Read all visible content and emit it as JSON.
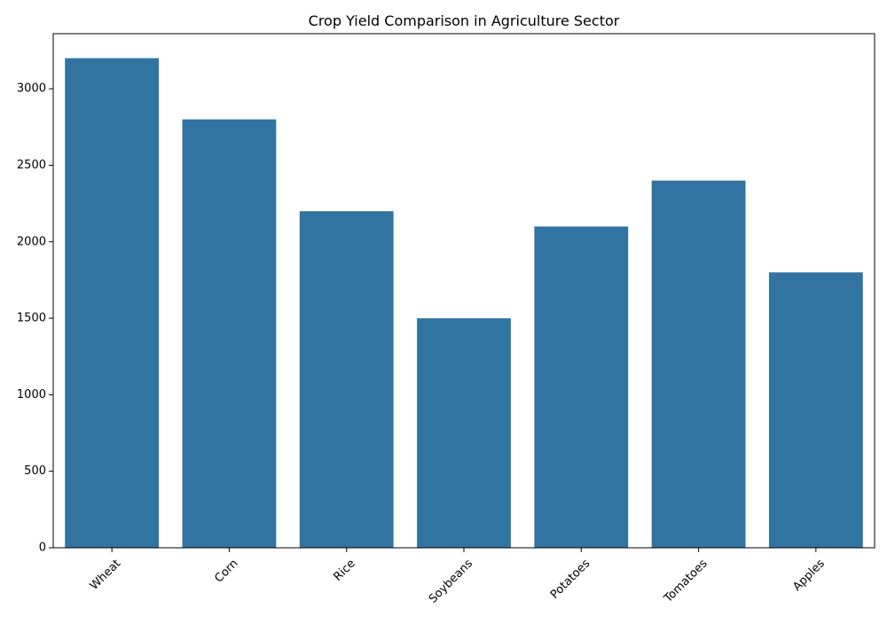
{
  "chart_data": {
    "type": "bar",
    "title": "Crop Yield Comparison in Agriculture Sector",
    "xlabel": "",
    "ylabel": "",
    "categories": [
      "Wheat",
      "Corn",
      "Rice",
      "Soybeans",
      "Potatoes",
      "Tomatoes",
      "Apples"
    ],
    "values": [
      3200,
      2800,
      2200,
      1500,
      2100,
      2400,
      1800
    ],
    "ylim": [
      0,
      3360
    ],
    "yticks": [
      0,
      500,
      1000,
      1500,
      2000,
      2500,
      3000
    ],
    "grid": false,
    "legend": "none",
    "bar_color": "#3274a1"
  }
}
